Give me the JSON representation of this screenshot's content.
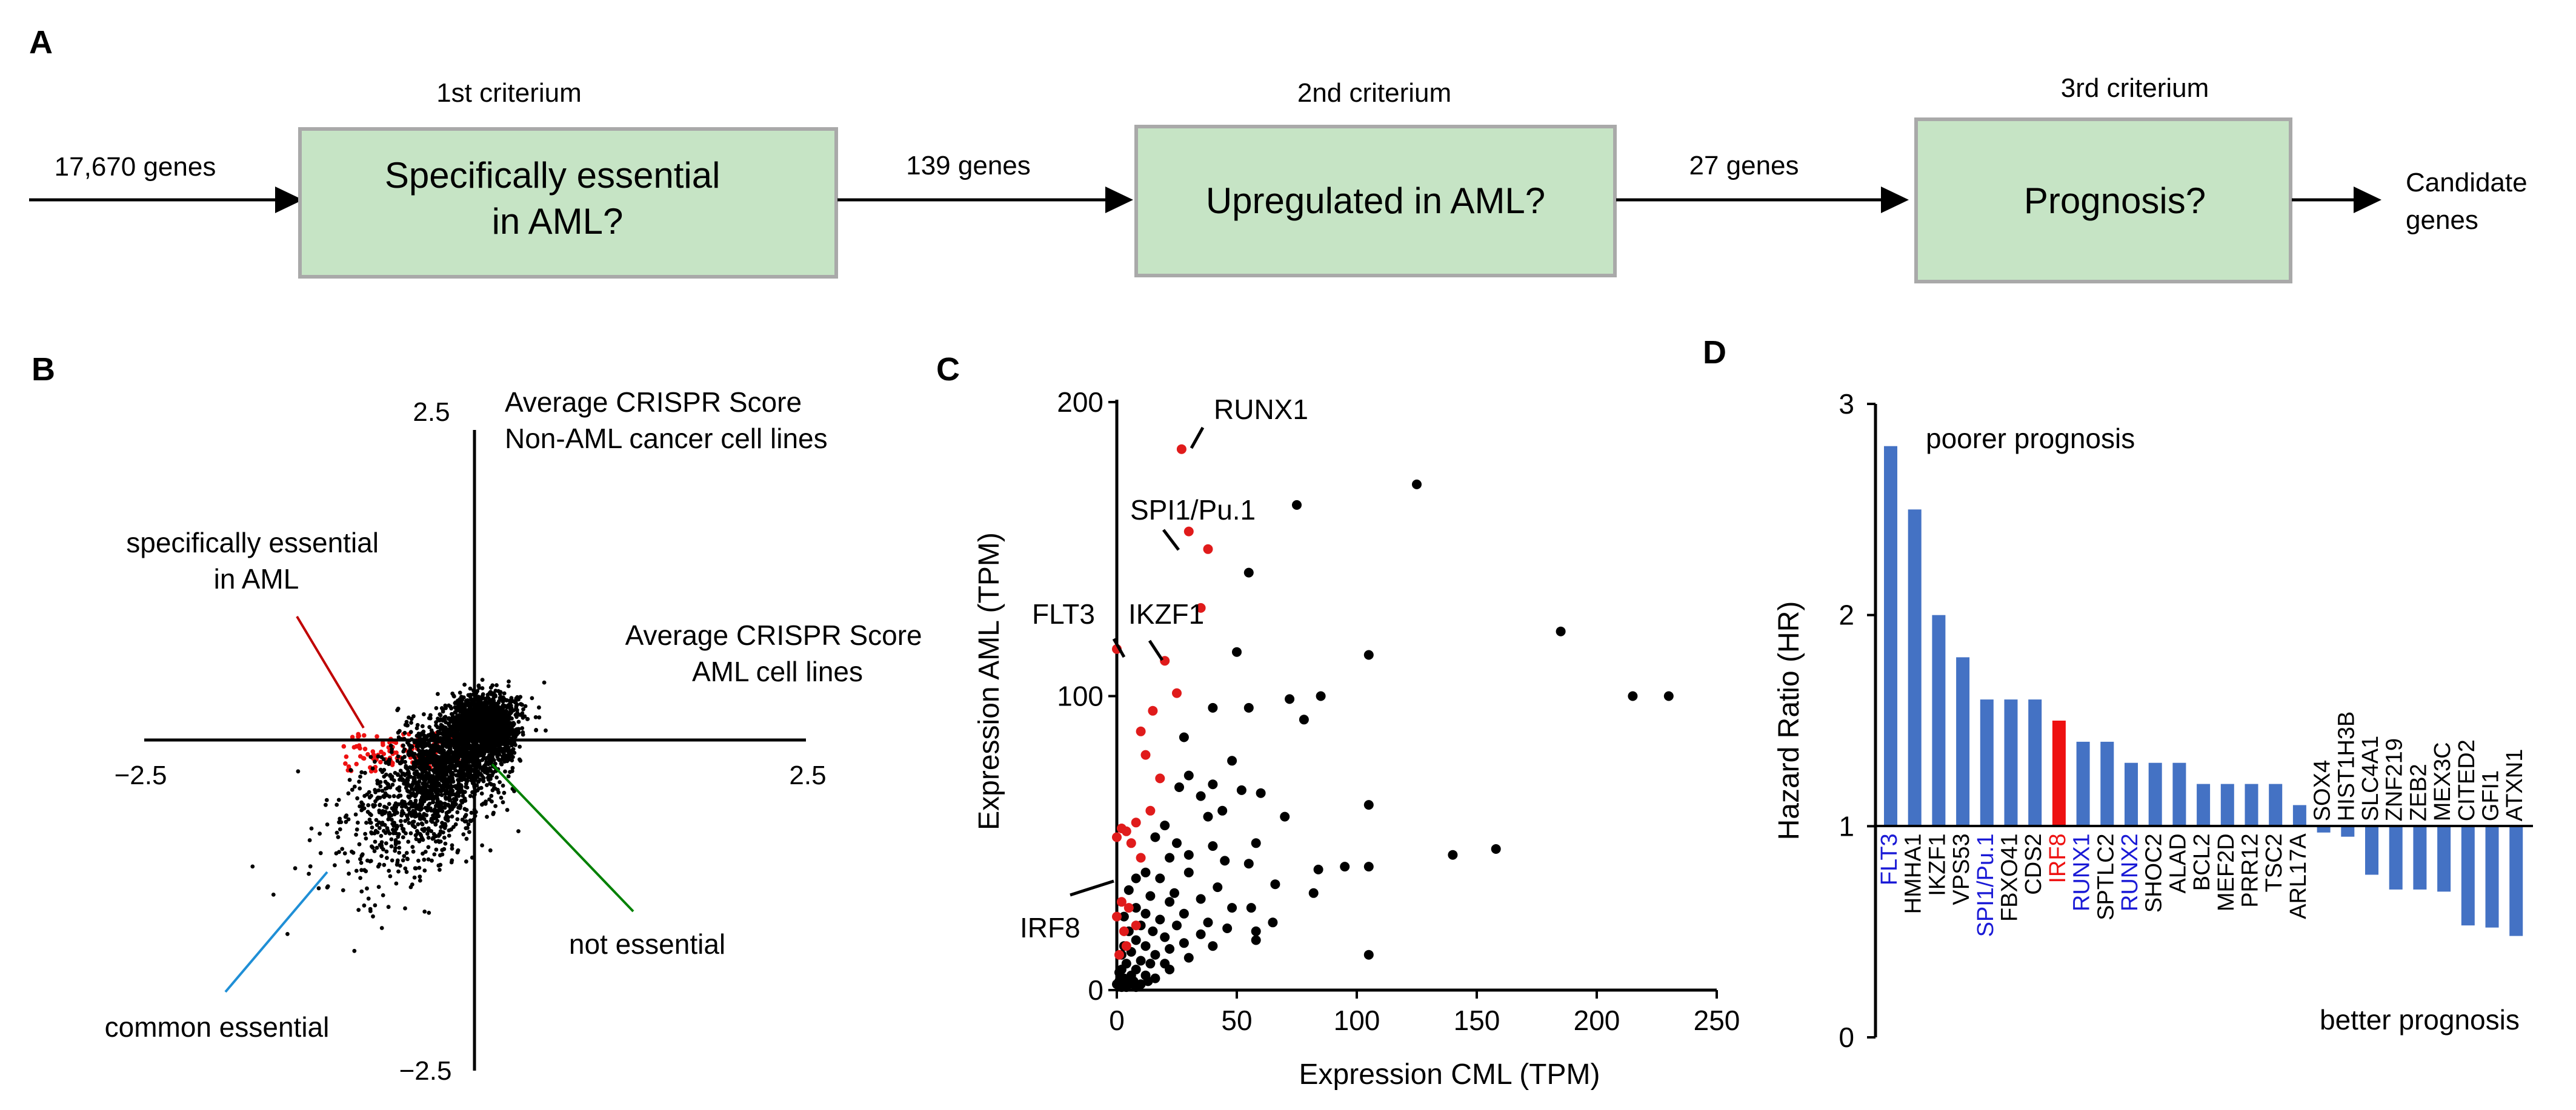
{
  "panels": {
    "A": "A",
    "B": "B",
    "C": "C",
    "D": "D"
  },
  "flow": {
    "input_label": "17,670 genes",
    "steps": [
      {
        "criterion": "1st criterium",
        "lines": [
          "Specifically essential",
          "in AML?"
        ],
        "output": "139 genes"
      },
      {
        "criterion": "2nd criterium",
        "lines": [
          "Upregulated in AML?"
        ],
        "output": "27 genes"
      },
      {
        "criterion": "3rd criterium",
        "lines": [
          "Prognosis?"
        ]
      }
    ],
    "result_lines": [
      "Candidate",
      "genes"
    ],
    "box_fill": "#c6e4c5",
    "box_stroke": "#a9a9a9"
  },
  "chart_data": [
    {
      "panel": "B",
      "type": "scatter",
      "xlim": [
        -2.5,
        2.5
      ],
      "ylim": [
        -2.5,
        2.5
      ],
      "tick_labels": {
        "x_neg": "−2.5",
        "x_pos": "2.5",
        "y_neg": "−2.5",
        "y_pos": "2.5"
      },
      "ylabel_lines": [
        "Average CRISPR Score",
        "Non-AML cancer cell lines"
      ],
      "xlabel_lines": [
        "Average CRISPR Score",
        "AML cell lines"
      ],
      "annotations": [
        {
          "lines": [
            "specifically essential",
            "in AML"
          ],
          "color": "#c00000"
        },
        {
          "lines": [
            "not essential"
          ],
          "color": "#008000"
        },
        {
          "lines": [
            "common essential"
          ],
          "color": "#1f8fd6"
        }
      ],
      "cloud": {
        "center": [
          0.0,
          0.05
        ],
        "spread_major": 0.55,
        "spread_minor": 0.16,
        "angle_deg": 48
      },
      "highlight_color": "#ee1111",
      "point_color": "#000000"
    },
    {
      "panel": "C",
      "type": "scatter",
      "xlabel": "Expression CML (TPM)",
      "ylabel": "Expression AML (TPM)",
      "xlim": [
        0,
        250
      ],
      "ylim": [
        0,
        200
      ],
      "xticks": [
        0,
        50,
        100,
        150,
        200,
        250
      ],
      "yticks": [
        0,
        100,
        200
      ],
      "series": [
        {
          "color": "#000000",
          "points": [
            [
              125,
              172
            ],
            [
              75,
              165
            ],
            [
              55,
              142
            ],
            [
              185,
              122
            ],
            [
              50,
              115
            ],
            [
              105,
              114
            ],
            [
              215,
              100
            ],
            [
              230,
              100
            ],
            [
              85,
              100
            ],
            [
              72,
              99
            ],
            [
              55,
              96
            ],
            [
              40,
              96
            ],
            [
              78,
              92
            ],
            [
              28,
              86
            ],
            [
              48,
              78
            ],
            [
              30,
              73
            ],
            [
              40,
              70
            ],
            [
              26,
              69
            ],
            [
              52,
              68
            ],
            [
              60,
              67
            ],
            [
              35,
              66
            ],
            [
              44,
              61
            ],
            [
              105,
              63
            ],
            [
              38,
              59
            ],
            [
              20,
              56
            ],
            [
              70,
              59
            ],
            [
              16,
              52
            ],
            [
              58,
              50
            ],
            [
              25,
              50
            ],
            [
              40,
              49
            ],
            [
              158,
              48
            ],
            [
              140,
              46
            ],
            [
              22,
              45
            ],
            [
              105,
              42
            ],
            [
              30,
              46
            ],
            [
              45,
              44
            ],
            [
              95,
              42
            ],
            [
              55,
              43
            ],
            [
              84,
              41
            ],
            [
              12,
              40
            ],
            [
              8,
              38
            ],
            [
              30,
              40
            ],
            [
              18,
              38
            ],
            [
              42,
              35
            ],
            [
              66,
              36
            ],
            [
              5,
              34
            ],
            [
              24,
              33
            ],
            [
              14,
              32
            ],
            [
              82,
              33
            ],
            [
              35,
              31
            ],
            [
              22,
              30
            ],
            [
              48,
              28
            ],
            [
              8,
              28
            ],
            [
              56,
              28
            ],
            [
              28,
              26
            ],
            [
              12,
              26
            ],
            [
              3,
              25
            ],
            [
              18,
              24
            ],
            [
              38,
              23
            ],
            [
              65,
              23
            ],
            [
              10,
              22
            ],
            [
              25,
              22
            ],
            [
              46,
              21
            ],
            [
              58,
              20
            ],
            [
              5,
              20
            ],
            [
              15,
              20
            ],
            [
              35,
              19
            ],
            [
              20,
              18
            ],
            [
              8,
              17
            ],
            [
              28,
              16
            ],
            [
              12,
              15
            ],
            [
              3,
              15
            ],
            [
              40,
              15
            ],
            [
              22,
              14
            ],
            [
              6,
              13
            ],
            [
              16,
              12
            ],
            [
              58,
              17
            ],
            [
              2,
              12
            ],
            [
              10,
              10
            ],
            [
              30,
              11
            ],
            [
              4,
              9
            ],
            [
              14,
              9
            ],
            [
              20,
              9
            ],
            [
              8,
              7
            ],
            [
              105,
              12
            ],
            [
              2,
              7
            ],
            [
              6,
              5
            ],
            [
              12,
              5
            ],
            [
              3,
              4
            ],
            [
              1,
              3
            ],
            [
              5,
              2
            ],
            [
              8,
              1
            ],
            [
              2,
              1
            ],
            [
              10,
              2
            ],
            [
              16,
              4
            ],
            [
              4,
              1
            ],
            [
              7,
              3
            ],
            [
              22,
              7
            ],
            [
              1,
              6
            ],
            [
              0,
              2
            ],
            [
              13,
              3
            ]
          ]
        },
        {
          "color": "#e01b1b",
          "points": [
            [
              27,
              184
            ],
            [
              30,
              156
            ],
            [
              38,
              150
            ],
            [
              35,
              130
            ],
            [
              0,
              116
            ],
            [
              20,
              112
            ],
            [
              25,
              101
            ],
            [
              15,
              95
            ],
            [
              10,
              88
            ],
            [
              12,
              80
            ],
            [
              18,
              72
            ],
            [
              14,
              61
            ],
            [
              8,
              57
            ],
            [
              2,
              55
            ],
            [
              4,
              54
            ],
            [
              0,
              52
            ],
            [
              6,
              50
            ],
            [
              10,
              45
            ],
            [
              2,
              30
            ],
            [
              5,
              28
            ],
            [
              0,
              25
            ],
            [
              8,
              22
            ],
            [
              3,
              20
            ],
            [
              4,
              15
            ],
            [
              1,
              12
            ]
          ]
        }
      ],
      "labels": [
        "RUNX1",
        "SPI1/Pu.1",
        "FLT3",
        "IKZF1",
        "IRF8"
      ]
    },
    {
      "panel": "D",
      "type": "bar",
      "ylabel": "Hazard Ratio (HR)",
      "ylim": [
        0,
        3
      ],
      "yticks": [
        "0",
        "1",
        "2",
        "3"
      ],
      "baseline": 1,
      "top_note": "poorer prognosis",
      "bottom_note": "better prognosis",
      "bar_color": "#4472c4",
      "highlight_bar_color": "#ee1111",
      "genes": [
        {
          "name": "FLT3",
          "hr": 2.8,
          "label_color": "#1a1ad6"
        },
        {
          "name": "HMHA1",
          "hr": 2.5,
          "label_color": "#000000"
        },
        {
          "name": "IKZF1",
          "hr": 2.0,
          "label_color": "#000000"
        },
        {
          "name": "VPS53",
          "hr": 1.8,
          "label_color": "#000000"
        },
        {
          "name": "SPI1/Pu.1",
          "hr": 1.6,
          "label_color": "#1a1ad6"
        },
        {
          "name": "FBXO41",
          "hr": 1.6,
          "label_color": "#000000"
        },
        {
          "name": "CDS2",
          "hr": 1.6,
          "label_color": "#000000"
        },
        {
          "name": "IRF8",
          "hr": 1.5,
          "label_color": "#ee1111",
          "highlight": true
        },
        {
          "name": "RUNX1",
          "hr": 1.4,
          "label_color": "#1a1ad6"
        },
        {
          "name": "SPTLC2",
          "hr": 1.4,
          "label_color": "#000000"
        },
        {
          "name": "RUNX2",
          "hr": 1.3,
          "label_color": "#1a1ad6"
        },
        {
          "name": "SHOC2",
          "hr": 1.3,
          "label_color": "#000000"
        },
        {
          "name": "ALAD",
          "hr": 1.3,
          "label_color": "#000000"
        },
        {
          "name": "BCL2",
          "hr": 1.2,
          "label_color": "#000000"
        },
        {
          "name": "MEF2D",
          "hr": 1.2,
          "label_color": "#000000"
        },
        {
          "name": "PRR12",
          "hr": 1.2,
          "label_color": "#000000"
        },
        {
          "name": "TSC2",
          "hr": 1.2,
          "label_color": "#000000"
        },
        {
          "name": "ARL17A",
          "hr": 1.1,
          "label_color": "#000000"
        },
        {
          "name": "SOX4",
          "hr": 0.97,
          "label_color": "#000000"
        },
        {
          "name": "HIST1H3B",
          "hr": 0.95,
          "label_color": "#000000"
        },
        {
          "name": "SLC4A1",
          "hr": 0.77,
          "label_color": "#000000"
        },
        {
          "name": "ZNF219",
          "hr": 0.7,
          "label_color": "#000000"
        },
        {
          "name": "ZEB2",
          "hr": 0.7,
          "label_color": "#000000"
        },
        {
          "name": "MEX3C",
          "hr": 0.69,
          "label_color": "#000000"
        },
        {
          "name": "CITED2",
          "hr": 0.53,
          "label_color": "#000000"
        },
        {
          "name": "GFI1",
          "hr": 0.52,
          "label_color": "#000000"
        },
        {
          "name": "ATXN1",
          "hr": 0.48,
          "label_color": "#000000"
        }
      ]
    }
  ]
}
